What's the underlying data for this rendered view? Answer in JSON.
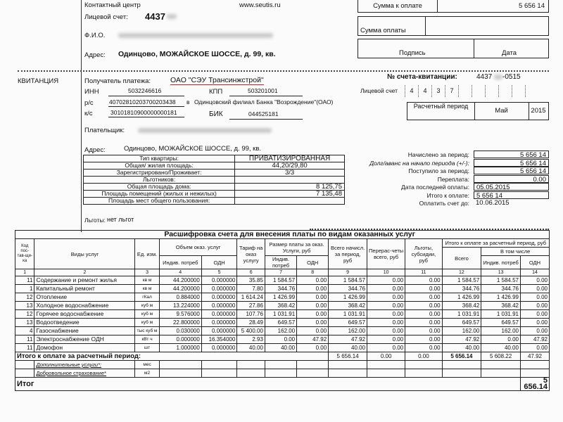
{
  "header": {
    "contact_label": "Контактный центр",
    "website": "www.seutis.ru",
    "account_label": "Лицевой счет:",
    "account_prefix": "4437",
    "fio_label": "Ф.И.О.",
    "address_label": "Адрес:",
    "address": "Одинцово, МОЖАЙСКОЕ ШОССЕ, д. 99, кв."
  },
  "payment_boxes": {
    "amount_due_label": "Сумма к оплате",
    "amount_due": "5 656 14",
    "amount_paid_label": "Сумма оплаты",
    "signature_label": "Подпись",
    "date_label": "Дата"
  },
  "receipt": {
    "title": "КВИТАНЦИЯ",
    "recipient_label": "Получатель платежа:",
    "recipient": "ОАО \"СЭУ Трансинжстрой\"",
    "inn_label": "ИНН",
    "inn": "5032246616",
    "kpp_label": "КПП",
    "kpp": "503201001",
    "rs_label": "р/с",
    "rs": "40702810203700203438",
    "bank_in": "в",
    "bank": "Одинцовский филиал Банка \"Возрождение\"(ОАО)",
    "ks_label": "к/с",
    "ks": "30101810900000000181",
    "bik_label": "БИК",
    "bik": "044525181",
    "payer_label": "Плательщик:",
    "address_label": "Адрес:",
    "address": "Одинцово, МОЖАЙСКОЕ ШОССЕ, д. 99, кв.",
    "benefits_label": "Льготы:",
    "benefits": "нет льгот"
  },
  "invoice": {
    "number_label": "№ счета-квитанции:",
    "number_prefix": "4437",
    "number_suffix": "-0515",
    "account_label": "Лицевой счет",
    "account_digits": [
      "4",
      "4",
      "3",
      "7",
      "",
      "",
      "",
      "",
      "",
      ""
    ],
    "period_label": "Расчетный период",
    "period_month": "Май",
    "period_year": "2015"
  },
  "apartment": [
    [
      "Тип квартиры:",
      "ПРИВАТИЗИРОВАННАЯ"
    ],
    [
      "Общая/ жилая площадь:",
      "44,20/29,80"
    ],
    [
      "Зарегистрировано/Проживает:",
      "3/3"
    ],
    [
      "Льготников:",
      ""
    ],
    [
      "Общая площадь дома:",
      "8 125,75"
    ],
    [
      "Площадь помещений (жилых и нежилых)",
      "7 135,48"
    ],
    [
      "Площадь мест общего пользования:",
      ""
    ]
  ],
  "summary": [
    [
      "Начислено за период:",
      "5 656 14"
    ],
    [
      "Долг/аванс на начало периода (+/-):",
      "5 656 14"
    ],
    [
      "Поступило за период:",
      "5 656 14"
    ],
    [
      "Переплата:",
      "0.00"
    ],
    [
      "Дата последней оплаты:",
      "05.05.2015"
    ],
    [
      "Итого к оплате:",
      "5 656 14"
    ],
    [
      "Оплатить счет до:",
      "10.06.2015"
    ]
  ],
  "services": {
    "title": "Расшифровка счета для внесения платы по видам оказанных услуг",
    "headers": {
      "code": "Код пос-тав-щи-ка",
      "service": "Виды услуг",
      "unit": "Ед. изм.",
      "volume": "Объем оказ. услуг",
      "indiv": "Индив. потреб",
      "odn": "ОДН",
      "tariff": "Тариф на оказ услугу",
      "payment": "Размер платы за оказ. Услуги, руб",
      "total": "Всего начисл. за период, руб",
      "recalc": "Перерас-четы всего, руб",
      "benefits": "Льготы, субсидии, руб",
      "due": "Итого к оплате за расчетный период, руб",
      "due_total": "Всего",
      "incl": "В том числе"
    },
    "col_numbers": [
      "1",
      "2",
      "3",
      "4",
      "5",
      "6",
      "7",
      "8",
      "9",
      "10",
      "11",
      "12",
      "13",
      "14"
    ],
    "rows": [
      [
        "11",
        "Содержание и ремонт жилья",
        "кв м",
        "44.200000",
        "0.000000",
        "35.85",
        "1 584.57",
        "0.00",
        "1 584.57",
        "0.00",
        "0.00",
        "1 584.57",
        "1 584.57",
        "0.00"
      ],
      [
        "1",
        "Капитальный ремонт",
        "кв м",
        "44.200000",
        "0.000000",
        "7.80",
        "344.76",
        "0.00",
        "344.76",
        "0.00",
        "0.00",
        "344.76",
        "344.76",
        "0.00"
      ],
      [
        "12",
        "Отопление",
        "гКал",
        "0.884000",
        "0.000000",
        "1 614.24",
        "1 426.99",
        "0.00",
        "1 426.99",
        "0.00",
        "0.00",
        "1 426.99",
        "1 426.99",
        "0.00"
      ],
      [
        "13",
        "Холодное водоснабжение",
        "куб м",
        "13.224000",
        "0.000000",
        "27.86",
        "368.42",
        "0.00",
        "368.42",
        "0.00",
        "0.00",
        "368.42",
        "368.42",
        "0.00"
      ],
      [
        "12",
        "Горячее водоснабжение",
        "куб м",
        "9.576000",
        "0.000000",
        "107.76",
        "1 031.91",
        "0.00",
        "1 031.91",
        "0.00",
        "0.00",
        "1 031.91",
        "1 031.91",
        "0.00"
      ],
      [
        "13",
        "Водоотведение",
        "куб м",
        "22.800000",
        "0.000000",
        "28.49",
        "649.57",
        "0.00",
        "649.57",
        "0.00",
        "0.00",
        "649.57",
        "649.57",
        "0.00"
      ],
      [
        "4",
        "Газоснабжение",
        "тыс куб м",
        "0.030000",
        "0.000000",
        "5 400.00",
        "162.00",
        "0.00",
        "162.00",
        "0.00",
        "0.00",
        "162.00",
        "162.00",
        "0.00"
      ],
      [
        "11",
        "Электроснабжение ОДН",
        "кВт ч",
        "0.000000",
        "16.354000",
        "2.93",
        "0.00",
        "47.92",
        "47.92",
        "0.00",
        "0.00",
        "47.92",
        "0.00",
        "47.92"
      ],
      [
        "11",
        "Домофон",
        "шт",
        "1.000000",
        "0.000000",
        "40.00",
        "40.00",
        "0.00",
        "40.00",
        "0.00",
        "0.00",
        "40.00",
        "40.00",
        "0.00"
      ]
    ],
    "totals_label": "Итого к оплате за расчетный период:",
    "totals": [
      "5 656.14",
      "0.00",
      "0.00",
      "5 656.14",
      "5 608.22",
      "47.92"
    ],
    "extra": [
      [
        "Дополнительные услуги*:",
        "мес"
      ],
      [
        "Добровольное страхование*",
        "м2"
      ]
    ],
    "grand_label": "Итог",
    "grand_total": "5 656.14"
  },
  "colors": {
    "underline_red": "#c0201f"
  }
}
